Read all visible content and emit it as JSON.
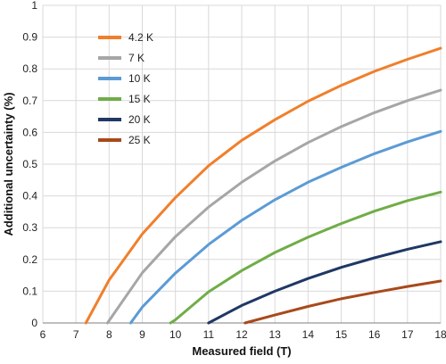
{
  "chart_data": {
    "type": "line",
    "title": "",
    "xlabel": "Measured field (T)",
    "ylabel": "Additional uncertainty (%)",
    "xlim": [
      6,
      18
    ],
    "ylim": [
      0,
      1
    ],
    "x_ticks": [
      6,
      7,
      8,
      9,
      10,
      11,
      12,
      13,
      14,
      15,
      16,
      17,
      18
    ],
    "y_ticks": [
      0,
      0.1,
      0.2,
      0.3,
      0.4,
      0.5,
      0.6,
      0.7,
      0.8,
      0.9,
      1
    ],
    "x_tick_labels": [
      "6",
      "7",
      "8",
      "9",
      "10",
      "11",
      "12",
      "13",
      "14",
      "15",
      "16",
      "17",
      "18"
    ],
    "y_tick_labels": [
      "0",
      "0.1",
      "0.2",
      "0.3",
      "0.4",
      "0.5",
      "0.6",
      "0.7",
      "0.8",
      "0.9",
      "1"
    ],
    "grid": "both",
    "legend_position": "top-left",
    "series": [
      {
        "name": "4.2 K",
        "color": "#f07f2b",
        "x": [
          7.3,
          8,
          9,
          10,
          11,
          12,
          13,
          14,
          15,
          16,
          17,
          18
        ],
        "y": [
          0,
          0.135,
          0.28,
          0.395,
          0.495,
          0.575,
          0.64,
          0.698,
          0.748,
          0.792,
          0.83,
          0.865
        ]
      },
      {
        "name": "7 K",
        "color": "#a6a6a6",
        "x": [
          7.95,
          9,
          10,
          11,
          12,
          13,
          14,
          15,
          16,
          17,
          18
        ],
        "y": [
          0,
          0.158,
          0.272,
          0.365,
          0.443,
          0.51,
          0.568,
          0.618,
          0.662,
          0.7,
          0.733
        ]
      },
      {
        "name": "10 K",
        "color": "#5b9bd5",
        "x": [
          8.65,
          9,
          10,
          11,
          12,
          13,
          14,
          15,
          16,
          17,
          18
        ],
        "y": [
          0,
          0.05,
          0.157,
          0.247,
          0.323,
          0.388,
          0.443,
          0.49,
          0.533,
          0.57,
          0.603
        ]
      },
      {
        "name": "15 K",
        "color": "#70ad47",
        "x": [
          9.85,
          10,
          11,
          12,
          13,
          14,
          15,
          16,
          17,
          18
        ],
        "y": [
          0,
          0.01,
          0.098,
          0.165,
          0.222,
          0.27,
          0.313,
          0.352,
          0.385,
          0.412
        ]
      },
      {
        "name": "20 K",
        "color": "#1f3864",
        "x": [
          11,
          12,
          13,
          14,
          15,
          16,
          17,
          18
        ],
        "y": [
          0,
          0.055,
          0.1,
          0.14,
          0.175,
          0.205,
          0.232,
          0.256
        ]
      },
      {
        "name": "25 K",
        "color": "#a9491b",
        "x": [
          12.1,
          13,
          14,
          15,
          16,
          17,
          18
        ],
        "y": [
          0,
          0.025,
          0.052,
          0.076,
          0.096,
          0.115,
          0.132
        ]
      }
    ]
  }
}
